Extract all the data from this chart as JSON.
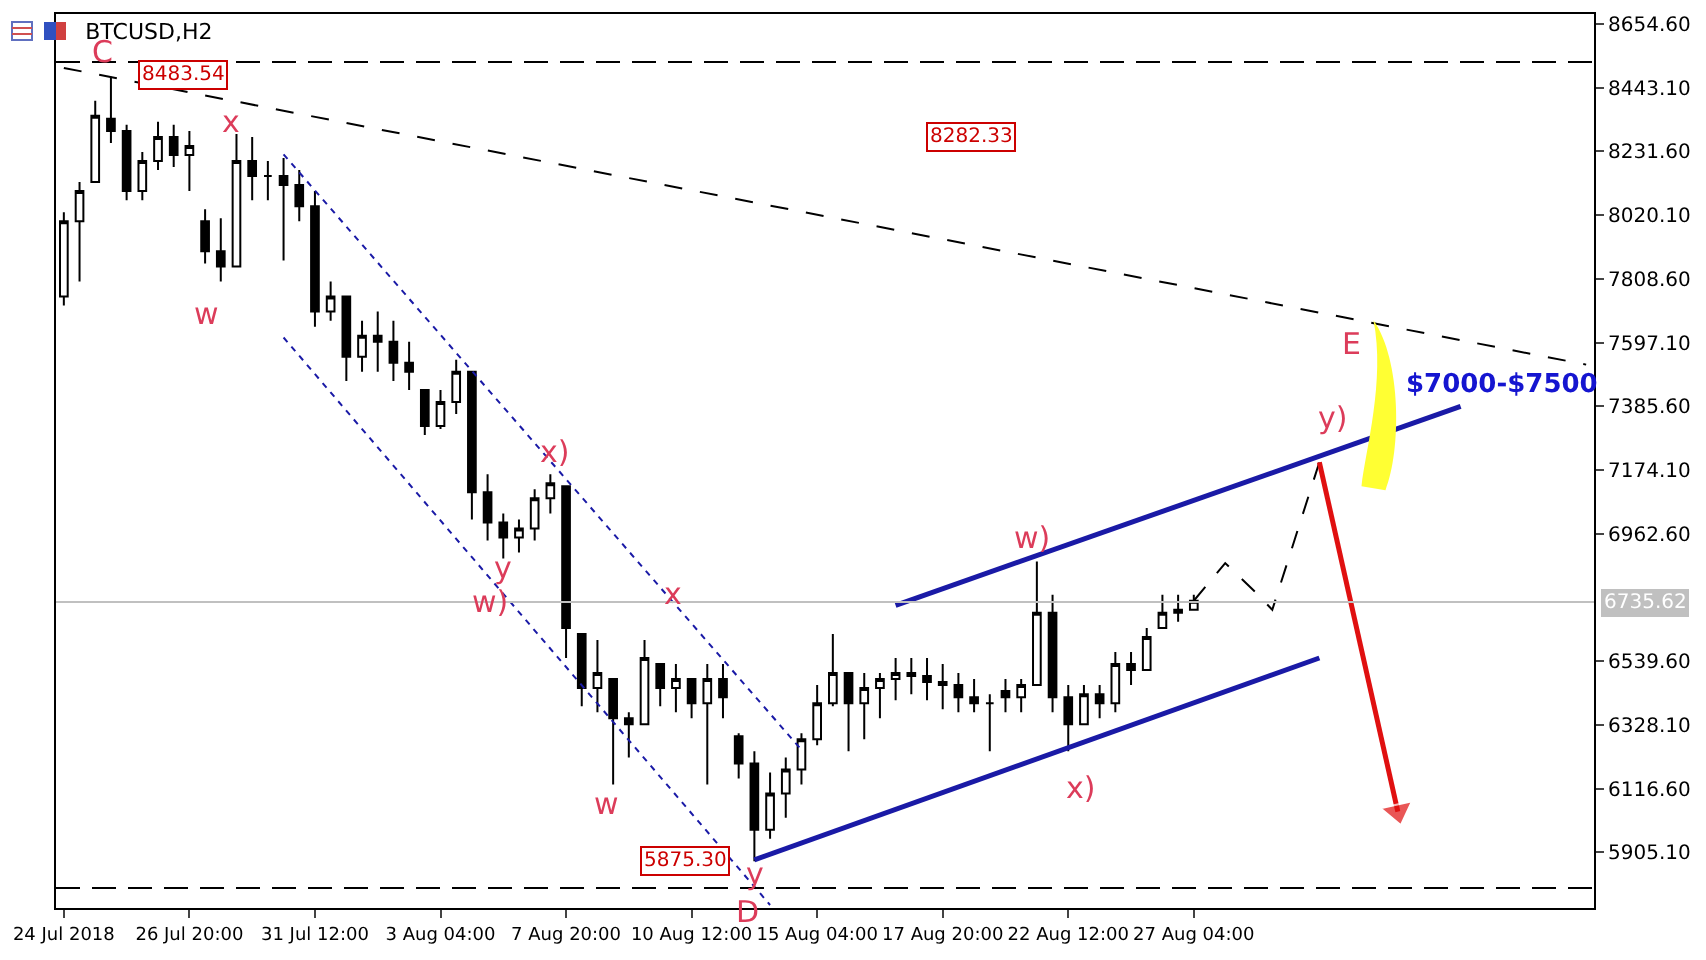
{
  "chart_data": {
    "type": "candlestick",
    "title": "BTCUSD,H2",
    "color": "#000000",
    "categories": [
      "24 Jul 2018",
      null,
      null,
      null,
      null,
      null,
      null,
      null,
      "26 Jul 20:00",
      null,
      null,
      null,
      null,
      null,
      null,
      null,
      "31 Jul 12:00",
      null,
      null,
      null,
      null,
      null,
      null,
      null,
      "3 Aug 04:00",
      null,
      null,
      null,
      null,
      null,
      null,
      null,
      "7 Aug 20:00",
      null,
      null,
      null,
      null,
      null,
      null,
      null,
      "10 Aug 12:00",
      null,
      null,
      null,
      null,
      null,
      null,
      null,
      "15 Aug 04:00",
      null,
      null,
      null,
      null,
      null,
      null,
      null,
      "17 Aug 20:00",
      null,
      null,
      null,
      null,
      null,
      null,
      null,
      "22 Aug 12:00",
      null,
      null,
      null,
      null,
      null,
      null,
      null,
      "27 Aug 04:00",
      null,
      null,
      null,
      null,
      null,
      null,
      null,
      null,
      null,
      null,
      null,
      null,
      null,
      null,
      null,
      null,
      null,
      null,
      null,
      null,
      null,
      null,
      null,
      null,
      null
    ],
    "ohlc": [
      [
        7750,
        8030,
        7720,
        8000
      ],
      [
        8000,
        8130,
        7800,
        8100
      ],
      [
        8130,
        8400,
        8130,
        8350
      ],
      [
        8340,
        8480,
        8260,
        8300
      ],
      [
        8300,
        8320,
        8070,
        8100
      ],
      [
        8100,
        8230,
        8070,
        8200
      ],
      [
        8200,
        8330,
        8170,
        8280
      ],
      [
        8280,
        8320,
        8180,
        8220
      ],
      [
        8220,
        8300,
        8100,
        8250
      ],
      [
        8000,
        8040,
        7860,
        7900
      ],
      [
        7900,
        8010,
        7800,
        7850
      ],
      [
        7850,
        8290,
        7850,
        8200
      ],
      [
        8200,
        8280,
        8070,
        8150
      ],
      [
        8150,
        8200,
        8070,
        8150
      ],
      [
        8150,
        8210,
        7870,
        8120
      ],
      [
        8120,
        8170,
        8000,
        8050
      ],
      [
        8050,
        8100,
        7650,
        7700
      ],
      [
        7700,
        7800,
        7670,
        7750
      ],
      [
        7750,
        7750,
        7470,
        7550
      ],
      [
        7550,
        7670,
        7500,
        7620
      ],
      [
        7620,
        7700,
        7500,
        7600
      ],
      [
        7600,
        7670,
        7470,
        7530
      ],
      [
        7530,
        7600,
        7440,
        7500
      ],
      [
        7440,
        7440,
        7290,
        7320
      ],
      [
        7320,
        7440,
        7310,
        7400
      ],
      [
        7400,
        7540,
        7360,
        7500
      ],
      [
        7500,
        7500,
        7010,
        7100
      ],
      [
        7100,
        7160,
        6940,
        7000
      ],
      [
        7000,
        7030,
        6880,
        6950
      ],
      [
        6950,
        7010,
        6900,
        6980
      ],
      [
        6980,
        7110,
        6940,
        7080
      ],
      [
        7080,
        7160,
        7030,
        7130
      ],
      [
        7120,
        7120,
        6550,
        6650
      ],
      [
        6630,
        6630,
        6390,
        6450
      ],
      [
        6450,
        6610,
        6370,
        6500
      ],
      [
        6480,
        6480,
        6130,
        6350
      ],
      [
        6350,
        6370,
        6220,
        6330
      ],
      [
        6330,
        6610,
        6330,
        6550
      ],
      [
        6530,
        6530,
        6390,
        6450
      ],
      [
        6450,
        6530,
        6370,
        6480
      ],
      [
        6480,
        6480,
        6350,
        6400
      ],
      [
        6400,
        6530,
        6130,
        6480
      ],
      [
        6480,
        6530,
        6350,
        6420
      ],
      [
        6290,
        6300,
        6150,
        6200
      ],
      [
        6200,
        6240,
        5875.3,
        5980
      ],
      [
        5980,
        6170,
        5950,
        6100
      ],
      [
        6100,
        6220,
        6020,
        6180
      ],
      [
        6180,
        6300,
        6130,
        6280
      ],
      [
        6280,
        6460,
        6260,
        6400
      ],
      [
        6400,
        6630,
        6390,
        6500
      ],
      [
        6500,
        6500,
        6240,
        6400
      ],
      [
        6400,
        6500,
        6280,
        6450
      ],
      [
        6450,
        6500,
        6350,
        6480
      ],
      [
        6480,
        6550,
        6410,
        6500
      ],
      [
        6500,
        6550,
        6430,
        6490
      ],
      [
        6490,
        6550,
        6410,
        6470
      ],
      [
        6470,
        6530,
        6380,
        6460
      ],
      [
        6460,
        6500,
        6370,
        6420
      ],
      [
        6420,
        6480,
        6370,
        6400
      ],
      [
        6400,
        6430,
        6240,
        6400
      ],
      [
        6440,
        6480,
        6370,
        6420
      ],
      [
        6420,
        6480,
        6370,
        6460
      ],
      [
        6460,
        6870,
        6460,
        6700
      ],
      [
        6700,
        6760,
        6370,
        6420
      ],
      [
        6420,
        6460,
        6240,
        6330
      ],
      [
        6330,
        6460,
        6330,
        6430
      ],
      [
        6430,
        6460,
        6350,
        6400
      ],
      [
        6400,
        6570,
        6370,
        6530
      ],
      [
        6530,
        6570,
        6460,
        6510
      ],
      [
        6510,
        6650,
        6510,
        6620
      ],
      [
        6650,
        6760,
        6650,
        6700
      ],
      [
        6700,
        6760,
        6670,
        6710
      ],
      [
        6710,
        6760,
        6710,
        6740
      ],
      null,
      null,
      null,
      null,
      null,
      null,
      null,
      null,
      null,
      null,
      null,
      null,
      null,
      null,
      null,
      null,
      null,
      null,
      null,
      null,
      null,
      null,
      null,
      null,
      null
    ],
    "series": [
      {
        "type": "line",
        "color": "#000000",
        "line_style": "dashed",
        "values": [
          8509,
          null,
          null,
          null,
          null,
          null,
          null,
          null,
          null,
          null,
          null,
          null,
          null,
          null,
          null,
          null,
          null,
          null,
          null,
          null,
          null,
          null,
          null,
          null,
          null,
          null,
          null,
          null,
          null,
          null,
          null,
          null,
          null,
          null,
          null,
          null,
          null,
          null,
          null,
          null,
          null,
          null,
          null,
          null,
          null,
          null,
          null,
          null,
          null,
          null,
          null,
          null,
          null,
          null,
          null,
          null,
          null,
          null,
          null,
          null,
          null,
          null,
          null,
          null,
          null,
          null,
          null,
          null,
          null,
          null,
          null,
          null,
          null,
          null,
          null,
          null,
          null,
          null,
          null,
          null,
          null,
          null,
          null,
          null,
          null,
          null,
          null,
          null,
          null,
          null,
          null,
          null,
          null,
          null,
          null,
          null,
          null,
          7524
        ]
      },
      {
        "type": "line",
        "color": "#1a1aa6",
        "line_style": "solid",
        "values": [
          null,
          null,
          null,
          null,
          null,
          null,
          null,
          null,
          null,
          null,
          null,
          null,
          null,
          null,
          null,
          null,
          null,
          null,
          null,
          null,
          null,
          null,
          null,
          null,
          null,
          null,
          null,
          null,
          null,
          null,
          null,
          null,
          null,
          null,
          null,
          null,
          null,
          null,
          null,
          null,
          null,
          null,
          null,
          null,
          null,
          null,
          null,
          null,
          null,
          null,
          null,
          null,
          null,
          6725,
          null,
          null,
          null,
          null,
          null,
          null,
          null,
          null,
          null,
          null,
          null,
          null,
          null,
          null,
          null,
          null,
          null,
          null,
          null,
          null,
          null,
          null,
          null,
          null,
          null,
          null,
          null,
          null,
          null,
          null,
          null,
          null,
          null,
          null,
          null,
          7385,
          null,
          null,
          null,
          null,
          null,
          null,
          null,
          null
        ]
      },
      {
        "type": "line",
        "color": "#1a1aa6",
        "line_style": "solid",
        "values": [
          null,
          null,
          null,
          null,
          null,
          null,
          null,
          null,
          null,
          null,
          null,
          null,
          null,
          null,
          null,
          null,
          null,
          null,
          null,
          null,
          null,
          null,
          null,
          null,
          null,
          null,
          null,
          null,
          null,
          null,
          null,
          null,
          null,
          null,
          null,
          null,
          null,
          null,
          null,
          null,
          null,
          null,
          null,
          null,
          5880,
          null,
          null,
          null,
          null,
          null,
          null,
          null,
          null,
          null,
          null,
          null,
          null,
          null,
          null,
          null,
          null,
          null,
          null,
          null,
          null,
          null,
          null,
          null,
          null,
          null,
          null,
          null,
          null,
          null,
          null,
          null,
          null,
          null,
          null,
          null,
          6550,
          null,
          null,
          null,
          null,
          null,
          null,
          null,
          null,
          null,
          null,
          null,
          null,
          null,
          null,
          null,
          null,
          null
        ]
      },
      {
        "type": "line",
        "color": "#000000",
        "line_style": "dashed",
        "values": [
          null,
          null,
          null,
          null,
          null,
          null,
          null,
          null,
          null,
          null,
          null,
          null,
          null,
          null,
          null,
          null,
          null,
          null,
          null,
          null,
          null,
          null,
          null,
          null,
          null,
          null,
          null,
          null,
          null,
          null,
          null,
          null,
          null,
          null,
          null,
          null,
          null,
          null,
          null,
          null,
          null,
          null,
          null,
          null,
          null,
          null,
          null,
          null,
          null,
          null,
          null,
          null,
          null,
          null,
          null,
          null,
          null,
          null,
          null,
          null,
          null,
          null,
          null,
          null,
          null,
          null,
          null,
          null,
          null,
          null,
          null,
          null,
          6740,
          null,
          6865,
          null,
          6765,
          6710,
          null,
          null,
          7200,
          null,
          null,
          null,
          null,
          null,
          null,
          null,
          null,
          null,
          null,
          null,
          null,
          null,
          null,
          null,
          null,
          null
        ]
      },
      {
        "type": "line",
        "color": "#e01010",
        "line_style": "solid",
        "marker": "triangle",
        "values": [
          null,
          null,
          null,
          null,
          null,
          null,
          null,
          null,
          null,
          null,
          null,
          null,
          null,
          null,
          null,
          null,
          null,
          null,
          null,
          null,
          null,
          null,
          null,
          null,
          null,
          null,
          null,
          null,
          null,
          null,
          null,
          null,
          null,
          null,
          null,
          null,
          null,
          null,
          null,
          null,
          null,
          null,
          null,
          null,
          null,
          null,
          null,
          null,
          null,
          null,
          null,
          null,
          null,
          null,
          null,
          null,
          null,
          null,
          null,
          null,
          null,
          null,
          null,
          null,
          null,
          null,
          null,
          null,
          null,
          null,
          null,
          null,
          null,
          null,
          null,
          null,
          null,
          null,
          null,
          null,
          7200,
          null,
          null,
          null,
          null,
          6040,
          null,
          null,
          null,
          null,
          null,
          null,
          null,
          null,
          null,
          null,
          null,
          null
        ]
      },
      {
        "type": "line",
        "color": "#1a1aa6",
        "line_style": "dotted",
        "values": [
          null,
          null,
          null,
          null,
          null,
          null,
          null,
          null,
          null,
          null,
          null,
          null,
          null,
          null,
          8222,
          null,
          null,
          null,
          null,
          null,
          null,
          null,
          null,
          null,
          null,
          null,
          null,
          null,
          null,
          null,
          null,
          null,
          null,
          null,
          null,
          null,
          null,
          null,
          null,
          null,
          null,
          null,
          null,
          null,
          null,
          null,
          null,
          6245,
          null,
          null,
          null,
          null,
          null,
          null,
          null,
          null,
          null,
          null,
          null,
          null,
          null,
          null,
          null,
          null,
          null,
          null,
          null,
          null,
          null,
          null,
          null,
          null,
          null,
          null,
          null,
          null,
          null,
          null,
          null,
          null,
          null,
          null,
          null,
          null,
          null,
          null,
          null,
          null,
          null,
          null,
          null,
          null,
          null,
          null,
          null,
          null,
          null,
          null
        ]
      },
      {
        "type": "line",
        "color": "#1a1aa6",
        "line_style": "dotted",
        "values": [
          null,
          null,
          null,
          null,
          null,
          null,
          null,
          null,
          null,
          null,
          null,
          null,
          null,
          null,
          7614,
          null,
          null,
          null,
          null,
          null,
          null,
          null,
          null,
          null,
          null,
          null,
          null,
          null,
          null,
          null,
          null,
          null,
          null,
          null,
          null,
          null,
          null,
          null,
          null,
          null,
          null,
          null,
          null,
          null,
          null,
          5730,
          null,
          null,
          null,
          null,
          null,
          null,
          null,
          null,
          null,
          null,
          null,
          null,
          null,
          null,
          null,
          null,
          null,
          null,
          null,
          null,
          null,
          null,
          null,
          null,
          null,
          null,
          null,
          null,
          null,
          null,
          null,
          null,
          null,
          null,
          null,
          null,
          null,
          null,
          null,
          null,
          null,
          null,
          null,
          null,
          null,
          null,
          null,
          null,
          null,
          null,
          null,
          null
        ]
      }
    ],
    "ylim": [
      5720,
      8688
    ],
    "yticks": [
      {
        "value": 8654.6,
        "label": "8654.60"
      },
      {
        "value": 8443.1,
        "label": "8443.10"
      },
      {
        "value": 8231.6,
        "label": "8231.60"
      },
      {
        "value": 8020.1,
        "label": "8020.10"
      },
      {
        "value": 7808.6,
        "label": "7808.60"
      },
      {
        "value": 7597.1,
        "label": "7597.10"
      },
      {
        "value": 7385.6,
        "label": "7385.60"
      },
      {
        "value": 7174.1,
        "label": "7174.10"
      },
      {
        "value": 6962.6,
        "label": "6962.60"
      },
      {
        "value": 6539.6,
        "label": "6539.60"
      },
      {
        "value": 6328.1,
        "label": "6328.10"
      },
      {
        "value": 6116.6,
        "label": "6116.60"
      },
      {
        "value": 5905.1,
        "label": "5905.10"
      }
    ],
    "ref_lines": [
      {
        "axis": "y",
        "value": 8529,
        "color": "#000000",
        "line_style": "dashed"
      },
      {
        "axis": "y",
        "value": 5786,
        "color": "#000000",
        "line_style": "dashed"
      },
      {
        "axis": "y",
        "value": 6735.62,
        "label": "6735.62",
        "color": "#c0c0c0",
        "line_style": "solid"
      }
    ],
    "annotations": [
      {
        "text": "C",
        "y": 8480
      },
      {
        "text": "8483.54",
        "y": 8483.54
      },
      {
        "text": "x",
        "y": 8290
      },
      "w",
      {
        "text": "x)",
        "y": 7160
      },
      {
        "text": "y",
        "y": 6880
      },
      "w)",
      "x",
      {
        "text": "w",
        "y": 6130
      },
      {
        "text": "y",
        "y": 5875.3
      },
      {
        "text": "D",
        "y": 5875.3
      },
      {
        "text": "5875.30",
        "y": 5875.3
      },
      {
        "text": "w)",
        "y": 6870
      },
      {
        "text": "x)",
        "y": 6240
      },
      {
        "text": "y)",
        "y": 7200
      },
      "E",
      "$7000-$7500",
      {
        "text": "8282.33",
        "y": 8282.33
      }
    ]
  }
}
